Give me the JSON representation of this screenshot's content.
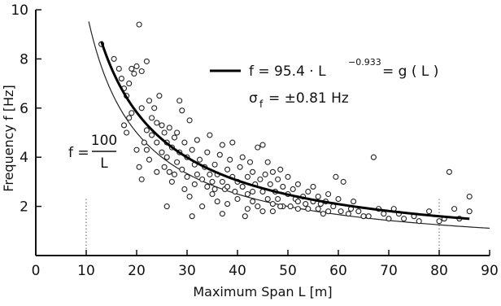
{
  "chart_data": {
    "type": "scatter",
    "title": "",
    "xlabel": "Maximum Span L [m]",
    "ylabel": "Frequency f [Hz]",
    "xlim": [
      0,
      90
    ],
    "ylim": [
      0,
      10
    ],
    "xticks": [
      "0",
      "10",
      "20",
      "30",
      "40",
      "50",
      "60",
      "70",
      "80",
      "90"
    ],
    "yticks": [
      "2",
      "4",
      "6",
      "8",
      "10"
    ],
    "grid": false,
    "dotted_reference_x": [
      10,
      80
    ],
    "legend": {
      "fit_line_text": "f = 95.4 · L",
      "fit_exponent": "−0.933",
      "fit_rhs": "= g ( L )",
      "sigma_symbol": "σ",
      "sigma_sub": "f",
      "sigma_rhs": "= ±0.81 Hz"
    },
    "curve_label": {
      "lhs": "f =",
      "numerator": "100",
      "denominator": "L"
    },
    "series": [
      {
        "kind": "fit_curve",
        "coefficient": 95.4,
        "exponent": -0.933,
        "x_range": [
          13,
          86
        ]
      },
      {
        "kind": "reference_curve",
        "coefficient": 100,
        "exponent": -1,
        "x_range": [
          10.5,
          90
        ]
      },
      {
        "kind": "points",
        "points": [
          [
            13,
            8.6
          ],
          [
            15.5,
            8.0
          ],
          [
            16.5,
            7.6
          ],
          [
            17,
            7.2
          ],
          [
            17.5,
            6.8
          ],
          [
            18,
            6.5
          ],
          [
            18.5,
            7.0
          ],
          [
            19,
            7.6
          ],
          [
            19.5,
            7.4
          ],
          [
            20,
            7.7
          ],
          [
            21,
            7.5
          ],
          [
            22,
            7.9
          ],
          [
            20.5,
            9.4
          ],
          [
            17.5,
            5.3
          ],
          [
            18,
            5.0
          ],
          [
            18.5,
            5.6
          ],
          [
            19,
            5.8
          ],
          [
            20,
            4.3
          ],
          [
            20.5,
            3.6
          ],
          [
            21,
            3.1
          ],
          [
            21,
            6.0
          ],
          [
            21.5,
            4.6
          ],
          [
            22,
            5.1
          ],
          [
            22,
            4.3
          ],
          [
            22.5,
            6.3
          ],
          [
            23,
            5.6
          ],
          [
            23,
            4.9
          ],
          [
            23.5,
            6.0
          ],
          [
            24,
            5.4
          ],
          [
            24,
            4.6
          ],
          [
            24.5,
            6.5
          ],
          [
            25,
            5.3
          ],
          [
            25,
            4.2
          ],
          [
            25.5,
            5.0
          ],
          [
            25.5,
            3.6
          ],
          [
            26,
            4.6
          ],
          [
            26,
            4.0
          ],
          [
            26.5,
            5.2
          ],
          [
            26.5,
            3.4
          ],
          [
            27,
            4.4
          ],
          [
            27,
            3.0
          ],
          [
            27.5,
            4.8
          ],
          [
            28,
            5.0
          ],
          [
            28,
            3.8
          ],
          [
            28.5,
            6.3
          ],
          [
            28.5,
            4.2
          ],
          [
            29,
            5.9
          ],
          [
            29,
            3.5
          ],
          [
            29.5,
            4.6
          ],
          [
            30,
            4.0
          ],
          [
            30,
            3.2
          ],
          [
            30.5,
            5.5
          ],
          [
            30.5,
            2.4
          ],
          [
            31,
            4.3
          ],
          [
            31,
            1.6
          ],
          [
            31.5,
            3.7
          ],
          [
            32,
            3.3
          ],
          [
            32,
            4.7
          ],
          [
            32.5,
            3.9
          ],
          [
            33,
            3.1
          ],
          [
            33.5,
            3.6
          ],
          [
            34,
            4.2
          ],
          [
            34,
            2.8
          ],
          [
            34.5,
            3.3
          ],
          [
            34.5,
            4.9
          ],
          [
            35,
            3.0
          ],
          [
            35,
            2.5
          ],
          [
            35.5,
            3.7
          ],
          [
            36,
            3.3
          ],
          [
            36,
            2.2
          ],
          [
            36.5,
            4.1
          ],
          [
            37,
            3.0
          ],
          [
            37,
            4.5
          ],
          [
            37.5,
            2.7
          ],
          [
            38,
            3.5
          ],
          [
            38,
            2.1
          ],
          [
            38.5,
            3.9
          ],
          [
            39,
            3.2
          ],
          [
            39,
            4.6
          ],
          [
            39.5,
            2.6
          ],
          [
            40,
            3.0
          ],
          [
            40,
            2.3
          ],
          [
            40.5,
            3.6
          ],
          [
            41,
            2.8
          ],
          [
            41,
            4.0
          ],
          [
            41.5,
            1.6
          ],
          [
            42,
            3.2
          ],
          [
            42,
            2.5
          ],
          [
            42.5,
            3.8
          ],
          [
            43,
            2.2
          ],
          [
            43,
            3.4
          ],
          [
            43.5,
            2.9
          ],
          [
            44,
            4.4
          ],
          [
            44,
            2.0
          ],
          [
            44.5,
            3.1
          ],
          [
            45,
            2.6
          ],
          [
            45,
            4.5
          ],
          [
            45.5,
            3.3
          ],
          [
            46,
            2.3
          ],
          [
            46,
            3.8
          ],
          [
            46.5,
            2.9
          ],
          [
            47,
            3.4
          ],
          [
            47,
            2.1
          ],
          [
            47.5,
            2.6
          ],
          [
            48,
            3.1
          ],
          [
            48,
            2.3
          ],
          [
            48.5,
            3.5
          ],
          [
            49,
            2.0
          ],
          [
            49,
            2.8
          ],
          [
            50,
            2.5
          ],
          [
            50,
            3.2
          ],
          [
            50.5,
            2.0
          ],
          [
            51,
            2.7
          ],
          [
            51.5,
            2.3
          ],
          [
            52,
            1.9
          ],
          [
            52,
            2.9
          ],
          [
            53,
            2.4
          ],
          [
            53.5,
            2.1
          ],
          [
            54,
            2.6
          ],
          [
            55,
            2.8
          ],
          [
            55,
            2.2
          ],
          [
            56,
            1.9
          ],
          [
            56,
            2.4
          ],
          [
            57,
            1.7
          ],
          [
            57.5,
            2.2
          ],
          [
            58,
            2.5
          ],
          [
            59,
            2.0
          ],
          [
            59.5,
            3.2
          ],
          [
            60,
            2.3
          ],
          [
            60.5,
            1.8
          ],
          [
            61,
            3.0
          ],
          [
            62,
            1.7
          ],
          [
            63,
            2.2
          ],
          [
            64,
            1.8
          ],
          [
            65,
            1.6
          ],
          [
            67,
            4.0
          ],
          [
            68,
            1.9
          ],
          [
            69,
            1.7
          ],
          [
            70,
            1.5
          ],
          [
            71,
            1.9
          ],
          [
            72,
            1.7
          ],
          [
            75,
            1.6
          ],
          [
            78,
            1.8
          ],
          [
            80,
            1.4
          ],
          [
            81,
            1.5
          ],
          [
            82,
            3.4
          ],
          [
            83,
            1.9
          ],
          [
            84,
            1.5
          ],
          [
            86,
            2.4
          ],
          [
            86,
            1.8
          ],
          [
            26,
            2.0
          ],
          [
            33,
            2.0
          ],
          [
            37,
            1.7
          ],
          [
            42,
            1.9
          ],
          [
            45,
            1.8
          ],
          [
            22.5,
            3.9
          ],
          [
            29.5,
            2.7
          ],
          [
            38,
            2.8
          ],
          [
            47,
            1.8
          ],
          [
            52,
            2.2
          ],
          [
            24,
            3.4
          ],
          [
            27.5,
            3.3
          ],
          [
            31.5,
            2.9
          ],
          [
            35.5,
            2.7
          ],
          [
            43,
            2.6
          ],
          [
            48.5,
            2.0
          ],
          [
            54,
            1.9
          ],
          [
            56.5,
            2.1
          ],
          [
            58,
            1.8
          ],
          [
            62.5,
            1.9
          ],
          [
            66,
            1.6
          ],
          [
            73,
            1.5
          ],
          [
            76,
            1.4
          ]
        ]
      }
    ]
  }
}
